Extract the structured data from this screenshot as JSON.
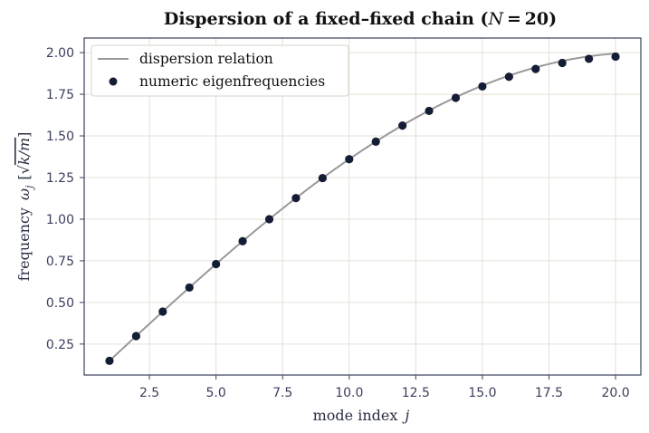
{
  "chart_data": {
    "type": "scatter",
    "title_main": "Dispersion of a fixed–fixed chain (",
    "title_var": "N",
    "title_tail": " = 20)",
    "xlabel": "mode index",
    "xlabel_var": "j",
    "ylabel": "frequency",
    "ylabel_sym": "ω",
    "ylabel_sub": "j",
    "ylabel_unit_open": "[√",
    "ylabel_unit_inner": "k/m",
    "ylabel_unit_close": "]",
    "xlim": [
      0.05,
      20.95
    ],
    "ylim": [
      0.0642,
      2.0876
    ],
    "xticks": [
      2.5,
      5.0,
      7.5,
      10.0,
      12.5,
      15.0,
      17.5,
      20.0
    ],
    "xtick_labels": [
      "2.5",
      "5.0",
      "7.5",
      "10.0",
      "12.5",
      "15.0",
      "17.5",
      "20.0"
    ],
    "yticks": [
      0.25,
      0.5,
      0.75,
      1.0,
      1.25,
      1.5,
      1.75,
      2.0
    ],
    "ytick_labels": [
      "0.25",
      "0.50",
      "0.75",
      "1.00",
      "1.25",
      "1.50",
      "1.75",
      "2.00"
    ],
    "grid": true,
    "legend_position": "top-left",
    "series": [
      {
        "name": "dispersion relation",
        "kind": "line",
        "color": "#999999",
        "formula": "2 sin(jπ / (2(N+1)))",
        "N": 20,
        "j_range": [
          1,
          20
        ]
      },
      {
        "name": "numeric eigenfrequencies",
        "kind": "points",
        "color": "#141c36",
        "x": [
          1,
          2,
          3,
          4,
          5,
          6,
          7,
          8,
          9,
          10,
          11,
          12,
          13,
          14,
          15,
          16,
          17,
          18,
          19,
          20
        ],
        "y": [
          0.1495,
          0.2981,
          0.445,
          0.5895,
          0.7307,
          0.8678,
          1.0,
          1.1266,
          1.2468,
          1.3599,
          1.4653,
          1.5622,
          1.6502,
          1.7286,
          1.797,
          1.855,
          1.9021,
          1.9382,
          1.9629,
          1.9763
        ]
      }
    ]
  },
  "colors": {
    "frame": "#3b3f5c",
    "grid": "#e2e0d8",
    "line": "#999999",
    "marker": "#141c36"
  }
}
